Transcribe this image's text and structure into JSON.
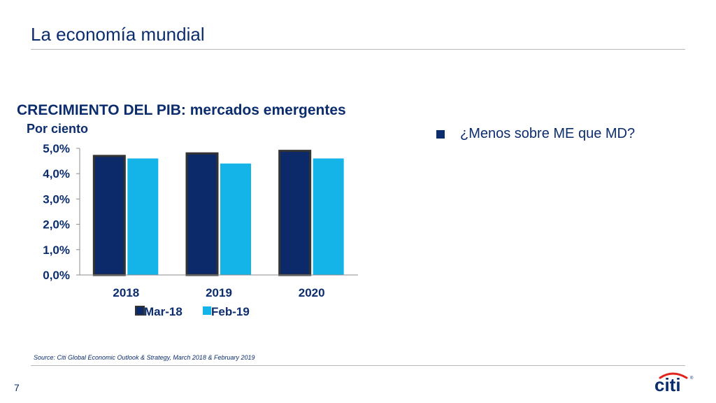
{
  "slide": {
    "title": "La economía mundial",
    "bullet": "¿Menos sobre ME que MD?",
    "source": "Source: Citi Global Economic Outlook & Strategy, March 2018 & February 2019",
    "page_number": "7",
    "logo_text": "citi"
  },
  "colors": {
    "series_mar18": "#0c2a6a",
    "series_feb19": "#15b4e8",
    "text": "#0b2d6e"
  },
  "chart_data": {
    "type": "bar",
    "title": "CRECIMIENTO DEL PIB: mercados emergentes",
    "subtitle": "Por ciento",
    "categories": [
      "2018",
      "2019",
      "2020"
    ],
    "series": [
      {
        "name": "Mar-18",
        "values": [
          4.7,
          4.8,
          4.9
        ]
      },
      {
        "name": "Feb-19",
        "values": [
          4.6,
          4.4,
          4.6
        ]
      }
    ],
    "yticks": [
      "0,0%",
      "1,0%",
      "2,0%",
      "3,0%",
      "4,0%",
      "5,0%"
    ],
    "ylim": [
      0,
      5
    ],
    "legend_position": "bottom",
    "grid": false
  }
}
